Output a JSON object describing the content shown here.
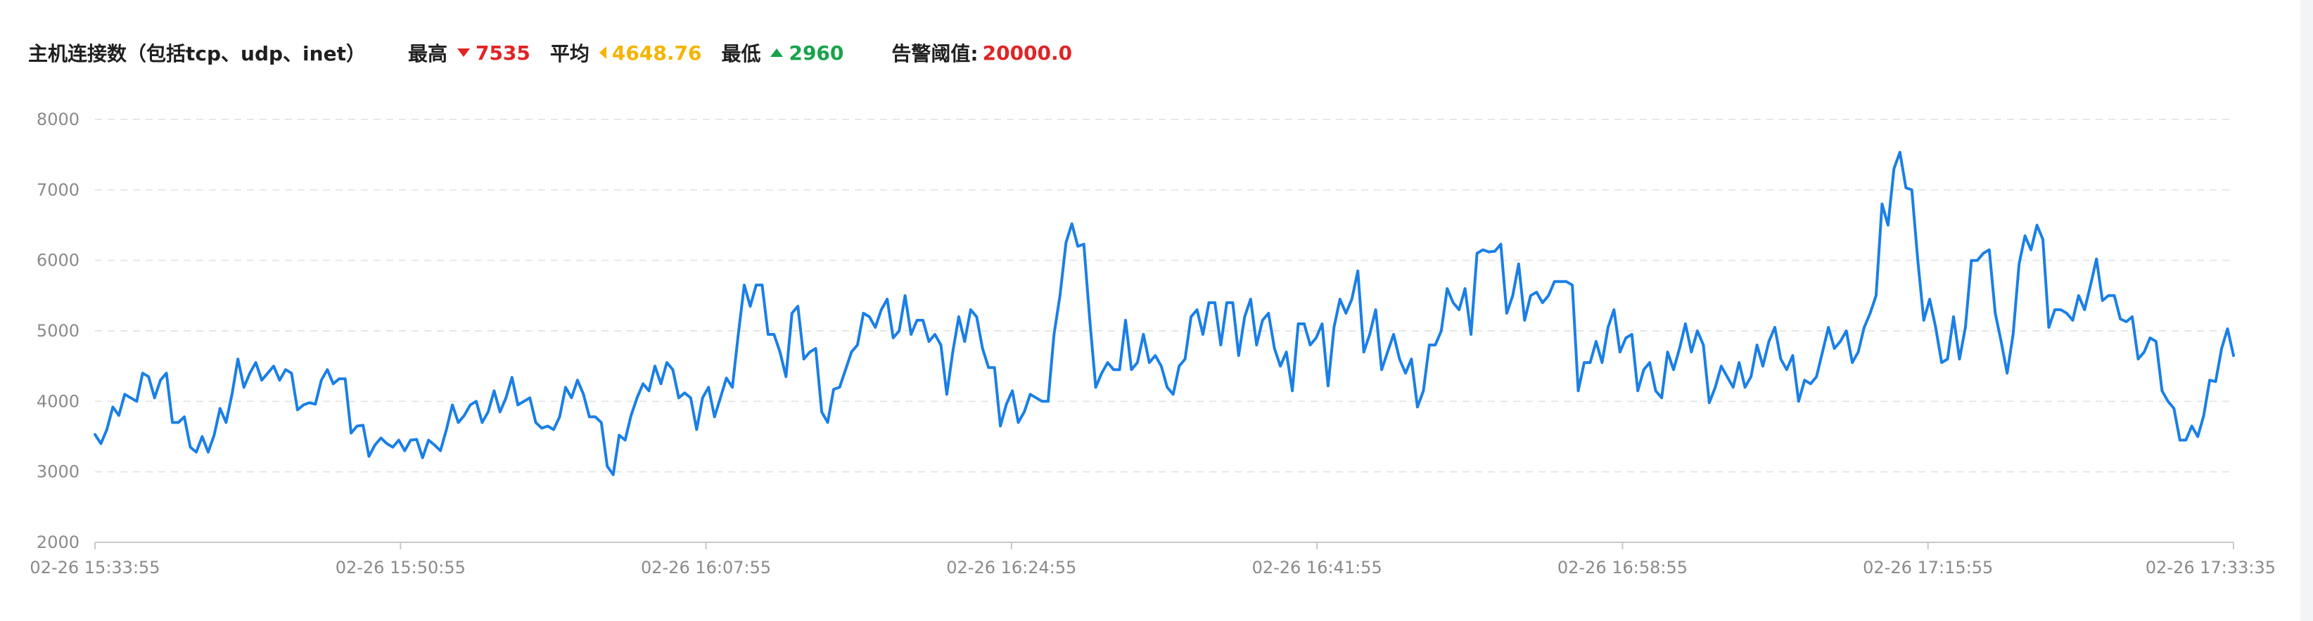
{
  "header": {
    "title": "主机连接数（包括tcp、udp、inet）",
    "max_label": "最高",
    "max_value": "7535",
    "avg_label": "平均",
    "avg_value": "4648.76",
    "min_label": "最低",
    "min_value": "2960",
    "alarm_label": "告警阈值:",
    "alarm_value": "20000.0"
  },
  "colors": {
    "line": "#1a7fe6",
    "max": "#e02424",
    "avg": "#f5b400",
    "min": "#16a34a"
  },
  "chart_data": {
    "type": "line",
    "ylim": [
      2000,
      8000
    ],
    "yticks": [
      "2000",
      "3000",
      "4000",
      "5000",
      "6000",
      "7000",
      "8000"
    ],
    "xticks": [
      "02-26 15:33:55",
      "02-26 15:50:55",
      "02-26 16:07:55",
      "02-26 16:24:55",
      "02-26 16:41:55",
      "02-26 16:58:55",
      "02-26 17:15:55",
      "02-26 17:33:35"
    ],
    "grid": true,
    "series": [
      {
        "values": [
          3530,
          3400,
          3600,
          3920,
          3800,
          4100,
          4050,
          4000,
          4400,
          4350,
          4050,
          4300,
          4400,
          3700,
          3700,
          3780,
          3350,
          3280,
          3500,
          3280,
          3520,
          3900,
          3700,
          4100,
          4600,
          4200,
          4400,
          4550,
          4300,
          4400,
          4500,
          4300,
          4450,
          4400,
          3880,
          3950,
          3980,
          3960,
          4300,
          4450,
          4250,
          4320,
          4320,
          3550,
          3650,
          3660,
          3220,
          3380,
          3480,
          3400,
          3350,
          3450,
          3300,
          3450,
          3460,
          3200,
          3450,
          3380,
          3300,
          3600,
          3950,
          3700,
          3800,
          3950,
          4000,
          3700,
          3850,
          4150,
          3850,
          4050,
          4340,
          3950,
          4000,
          4050,
          3700,
          3620,
          3650,
          3600,
          3780,
          4200,
          4050,
          4300,
          4100,
          3780,
          3780,
          3700,
          3080,
          2960,
          3520,
          3450,
          3800,
          4050,
          4250,
          4150,
          4500,
          4250,
          4550,
          4450,
          4050,
          4120,
          4050,
          3600,
          4050,
          4200,
          3780,
          4050,
          4330,
          4200,
          4950,
          5650,
          5350,
          5650,
          5650,
          4950,
          4950,
          4700,
          4350,
          5250,
          5350,
          4600,
          4700,
          4750,
          3850,
          3700,
          4170,
          4200,
          4450,
          4700,
          4800,
          5250,
          5200,
          5050,
          5300,
          5450,
          4900,
          5000,
          5500,
          4950,
          5150,
          5150,
          4850,
          4950,
          4800,
          4100,
          4700,
          5200,
          4850,
          5300,
          5200,
          4750,
          4480,
          4480,
          3650,
          3960,
          4150,
          3700,
          3850,
          4100,
          4050,
          4000,
          4000,
          4950,
          5500,
          6250,
          6520,
          6200,
          6230,
          5150,
          4200,
          4400,
          4550,
          4450,
          4450,
          5150,
          4450,
          4550,
          4950,
          4550,
          4650,
          4500,
          4200,
          4100,
          4500,
          4600,
          5200,
          5300,
          4950,
          5400,
          5400,
          4800,
          5400,
          5400,
          4650,
          5200,
          5450,
          4800,
          5150,
          5250,
          4750,
          4500,
          4700,
          4150,
          5100,
          5100,
          4800,
          4900,
          5100,
          4220,
          5050,
          5450,
          5250,
          5450,
          5850,
          4700,
          4950,
          5300,
          4450,
          4700,
          4950,
          4600,
          4400,
          4600,
          3920,
          4150,
          4800,
          4800,
          5000,
          5600,
          5400,
          5300,
          5600,
          4950,
          6100,
          6150,
          6120,
          6130,
          6230,
          5250,
          5500,
          5950,
          5150,
          5500,
          5550,
          5400,
          5500,
          5700,
          5700,
          5700,
          5650,
          4150,
          4550,
          4550,
          4850,
          4550,
          5050,
          5300,
          4700,
          4900,
          4950,
          4150,
          4450,
          4550,
          4150,
          4050,
          4700,
          4450,
          4750,
          5100,
          4700,
          5000,
          4800,
          3980,
          4200,
          4500,
          4350,
          4200,
          4550,
          4200,
          4350,
          4800,
          4500,
          4850,
          5050,
          4600,
          4450,
          4650,
          4000,
          4300,
          4250,
          4350,
          4700,
          5050,
          4750,
          4850,
          5000,
          4550,
          4700,
          5050,
          5250,
          5500,
          6800,
          6500,
          7300,
          7535,
          7030,
          7000,
          6000,
          5150,
          5450,
          5050,
          4550,
          4600,
          5200,
          4600,
          5050,
          6000,
          6000,
          6100,
          6150,
          5250,
          4850,
          4400,
          4950,
          5950,
          6350,
          6150,
          6500,
          6300,
          5050,
          5300,
          5300,
          5250,
          5150,
          5500,
          5300,
          5650,
          6020,
          5430,
          5500,
          5500,
          5170,
          5130,
          5200,
          4600,
          4700,
          4900,
          4850,
          4150,
          4000,
          3900,
          3450,
          3450,
          3650,
          3500,
          3800,
          4300,
          4280,
          4750,
          5030,
          4650
        ]
      }
    ]
  }
}
